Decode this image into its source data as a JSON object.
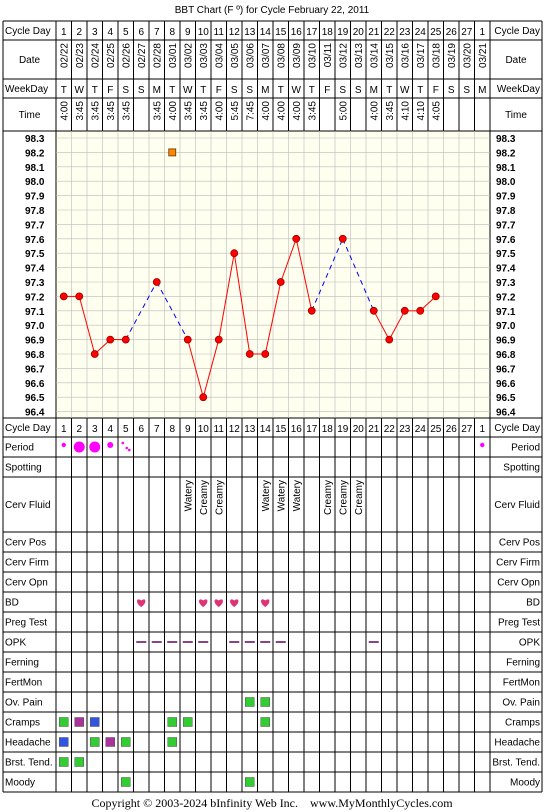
{
  "title": "BBT Chart (F º) for Cycle February 22, 2011",
  "copyright": "Copyright © 2003-2024 bInfinity Web Inc.    www.MyMonthlyCycles.com",
  "row_labels": {
    "cycle_day": "Cycle Day",
    "date": "Date",
    "weekday": "WeekDay",
    "time": "Time",
    "period": "Period",
    "spotting": "Spotting",
    "cerv_fluid": "Cerv Fluid",
    "cerv_pos": "Cerv Pos",
    "cerv_firm": "Cerv Firm",
    "cerv_opn": "Cerv Opn",
    "bd": "BD",
    "preg_test": "Preg Test",
    "opk": "OPK",
    "ferning": "Ferning",
    "fertmon": "FertMon",
    "ov_pain": "Ov. Pain",
    "cramps": "Cramps",
    "headache": "Headache",
    "brst_tend": "Brst. Tend.",
    "moody": "Moody"
  },
  "colors": {
    "grid": "#000000",
    "chart_bg": "#fffff0",
    "line": "#ff0000",
    "dashed": "#0000ff",
    "point": "#ff0000",
    "period": "#ff00ff",
    "green": "#33cc33",
    "purple": "#aa3399",
    "blue": "#3355dd",
    "heart": "#dd3377",
    "opk": "#884488",
    "orange": "#ff8800"
  },
  "chart_data": {
    "type": "line",
    "title": "BBT Chart (F º) for Cycle February 22, 2011",
    "ylim": [
      96.4,
      98.3
    ],
    "y_ticks": [
      "98.3",
      "98.2",
      "98.1",
      "98.0",
      "97.9",
      "97.8",
      "97.7",
      "97.6",
      "97.5",
      "97.4",
      "97.3",
      "97.2",
      "97.1",
      "97.0",
      "96.9",
      "96.8",
      "96.7",
      "96.6",
      "96.5",
      "96.4"
    ],
    "days": [
      "1",
      "2",
      "3",
      "4",
      "5",
      "6",
      "7",
      "8",
      "9",
      "10",
      "11",
      "12",
      "13",
      "14",
      "15",
      "16",
      "17",
      "18",
      "19",
      "20",
      "21",
      "22",
      "23",
      "24",
      "25",
      "26",
      "27",
      "1"
    ],
    "dates": [
      "02/22",
      "02/23",
      "02/24",
      "02/25",
      "02/26",
      "02/27",
      "02/28",
      "03/01",
      "03/02",
      "03/03",
      "03/04",
      "03/05",
      "03/06",
      "03/07",
      "03/08",
      "03/09",
      "03/10",
      "03/11",
      "03/12",
      "03/13",
      "03/14",
      "03/15",
      "03/16",
      "03/17",
      "03/18",
      "03/19",
      "03/20",
      "03/21"
    ],
    "weekdays": [
      "T",
      "W",
      "T",
      "F",
      "S",
      "S",
      "M",
      "T",
      "W",
      "T",
      "F",
      "S",
      "S",
      "M",
      "T",
      "W",
      "T",
      "F",
      "S",
      "S",
      "M",
      "T",
      "W",
      "T",
      "F",
      "S",
      "S",
      "M"
    ],
    "times": [
      "4:00",
      "3:45",
      "3:45",
      "3:45",
      "3:45",
      "",
      "3:45",
      "4:00",
      "3:45",
      "3:45",
      "4:00",
      "5:45",
      "7:45",
      "4:00",
      "4:00",
      "4:00",
      "3:45",
      "",
      "5:00",
      "",
      "4:00",
      "3:45",
      "4:10",
      "4:10",
      "4:05",
      "",
      "",
      ""
    ],
    "temps": [
      97.2,
      97.2,
      96.8,
      96.9,
      96.9,
      null,
      97.3,
      null,
      96.9,
      96.5,
      96.9,
      97.5,
      96.8,
      96.8,
      97.3,
      97.6,
      97.1,
      null,
      97.6,
      null,
      97.1,
      96.9,
      97.1,
      97.1,
      97.2,
      null,
      null,
      null
    ],
    "marker": {
      "day_index": 7,
      "value": 98.2
    },
    "period": [
      "dot",
      "big",
      "big",
      "small",
      "spotting",
      "",
      "",
      "",
      "",
      "",
      "",
      "",
      "",
      "",
      "",
      "",
      "",
      "",
      "",
      "",
      "",
      "",
      "",
      "",
      "",
      "",
      "",
      "dot"
    ],
    "cerv_fluid": [
      "",
      "",
      "",
      "",
      "",
      "",
      "",
      "",
      "Watery",
      "Creamy",
      "Creamy",
      "",
      "",
      "Watery",
      "Watery",
      "Watery",
      "",
      "Creamy",
      "Creamy",
      "Creamy",
      "",
      "",
      "",
      "",
      "",
      "",
      "",
      ""
    ],
    "bd": [
      5,
      9,
      10,
      11,
      13
    ],
    "opk": [
      5,
      6,
      7,
      8,
      9,
      11,
      12,
      13,
      14,
      20
    ],
    "ov_pain": [
      12,
      13
    ],
    "cramps": [
      {
        "d": 0,
        "c": "green"
      },
      {
        "d": 1,
        "c": "purple"
      },
      {
        "d": 2,
        "c": "blue"
      },
      {
        "d": 7,
        "c": "green"
      },
      {
        "d": 8,
        "c": "green"
      },
      {
        "d": 13,
        "c": "green"
      }
    ],
    "headache": [
      {
        "d": 0,
        "c": "blue"
      },
      {
        "d": 2,
        "c": "green"
      },
      {
        "d": 3,
        "c": "purple"
      },
      {
        "d": 4,
        "c": "green"
      },
      {
        "d": 7,
        "c": "green"
      }
    ],
    "brst_tend": [
      {
        "d": 0,
        "c": "green"
      },
      {
        "d": 1,
        "c": "green"
      }
    ],
    "moody": [
      {
        "d": 4,
        "c": "green"
      },
      {
        "d": 12,
        "c": "green"
      }
    ]
  }
}
